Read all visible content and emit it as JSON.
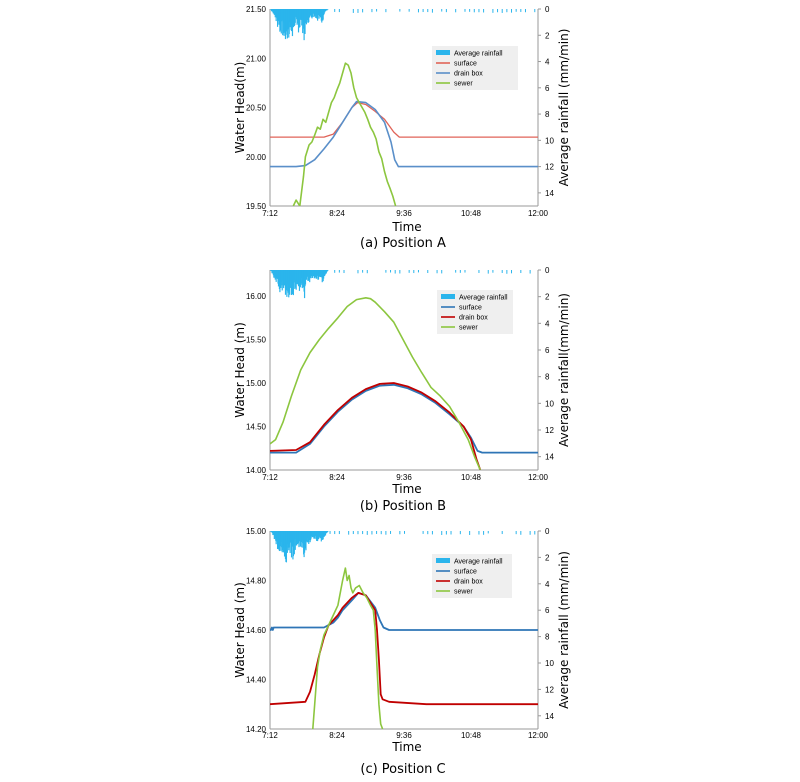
{
  "colors": {
    "rain": "#2bb5ec",
    "surface_a": "#e06358",
    "drain_a": "#5a8fc9",
    "sewer": "#8cc63f",
    "surface_bc": "#2e75b6",
    "drain_bc": "#c00000",
    "legend_bg": "#efefef"
  },
  "chart_data": [
    {
      "type": "line",
      "caption": "(a) Position A",
      "xlabel": "Time",
      "ylabel": "Water Head(m)",
      "y2label": "Average rainfall (mm/min)",
      "xticks": [
        "7:12",
        "8:24",
        "9:36",
        "10:48",
        "12:00"
      ],
      "yticks": [
        "19.50",
        "20.00",
        "20.50",
        "21.00",
        "21.50"
      ],
      "y2ticks": [
        "0",
        "2",
        "4",
        "6",
        "8",
        "10",
        "12",
        "14"
      ],
      "ylim": [
        19.5,
        21.5
      ],
      "y2lim": [
        0,
        15
      ],
      "xlim_minutes": [
        432,
        720
      ],
      "legend_position": "top-right",
      "legend": [
        "Average rainfall",
        "surface",
        "drain box",
        "sewer"
      ],
      "series": [
        {
          "name": "surface",
          "x": [
            "7:12",
            "7:40",
            "8:00",
            "8:10",
            "8:20",
            "8:30",
            "8:40",
            "8:46",
            "8:55",
            "9:05",
            "9:15",
            "9:25",
            "9:31",
            "10:00",
            "10:48",
            "12:00"
          ],
          "y": [
            20.2,
            20.2,
            20.2,
            20.2,
            20.23,
            20.35,
            20.5,
            20.55,
            20.53,
            20.46,
            20.38,
            20.25,
            20.2,
            20.2,
            20.2,
            20.2
          ]
        },
        {
          "name": "drain box",
          "x": [
            "7:12",
            "7:40",
            "7:50",
            "8:00",
            "8:10",
            "8:20",
            "8:30",
            "8:40",
            "8:45",
            "8:55",
            "9:05",
            "9:15",
            "9:22",
            "9:26",
            "9:30",
            "10:00",
            "10:48",
            "12:00"
          ],
          "y": [
            19.9,
            19.9,
            19.91,
            19.97,
            20.08,
            20.2,
            20.35,
            20.5,
            20.56,
            20.55,
            20.48,
            20.35,
            20.15,
            19.97,
            19.9,
            19.9,
            19.9,
            19.9
          ]
        },
        {
          "name": "sewer",
          "x": [
            "7:37",
            "7:40",
            "7:44",
            "7:48",
            "7:50",
            "7:54",
            "7:57",
            "8:00",
            "8:03",
            "8:06",
            "8:09",
            "8:12",
            "8:15",
            "8:18",
            "8:21",
            "8:24",
            "8:27",
            "8:30",
            "8:33",
            "8:36",
            "8:39",
            "8:42",
            "8:45",
            "8:48",
            "8:51",
            "8:54",
            "8:57",
            "9:00",
            "9:03",
            "9:06",
            "9:09",
            "9:12",
            "9:15",
            "9:18",
            "9:21",
            "9:24",
            "9:27"
          ],
          "y": [
            19.5,
            19.56,
            19.5,
            19.8,
            20.0,
            20.12,
            20.15,
            20.22,
            20.3,
            20.28,
            20.38,
            20.35,
            20.45,
            20.55,
            20.6,
            20.68,
            20.75,
            20.85,
            20.95,
            20.93,
            20.85,
            20.7,
            20.6,
            20.55,
            20.5,
            20.45,
            20.38,
            20.3,
            20.25,
            20.18,
            20.05,
            19.98,
            19.85,
            19.75,
            19.68,
            19.6,
            19.5
          ]
        }
      ],
      "rainfall_profile": [
        [
          0.0,
          0
        ],
        [
          3,
          0.4
        ],
        [
          6,
          1.0
        ],
        [
          9,
          1.4
        ],
        [
          12,
          1.6
        ],
        [
          15,
          1.8
        ],
        [
          18,
          2.4
        ],
        [
          21,
          1.6
        ],
        [
          24,
          1.9
        ],
        [
          27,
          1.3
        ],
        [
          30,
          1.5
        ],
        [
          33,
          1.1
        ],
        [
          36,
          2.0
        ],
        [
          39,
          1.0
        ],
        [
          42,
          0.8
        ],
        [
          46,
          0.5
        ],
        [
          50,
          0.9
        ],
        [
          53,
          0.6
        ],
        [
          56,
          1.1
        ],
        [
          58,
          0.4
        ],
        [
          60,
          0.2
        ],
        [
          62,
          0.0
        ]
      ]
    },
    {
      "type": "line",
      "caption": "(b) Position B",
      "xlabel": "Time",
      "ylabel": "Water Head (m)",
      "y2label": "Average rainfall(mm/min)",
      "xticks": [
        "7:12",
        "8:24",
        "9:36",
        "10:48",
        "12:00"
      ],
      "yticks": [
        "14.00",
        "14.50",
        "15.00",
        "15.50",
        "16.00"
      ],
      "y2ticks": [
        "0",
        "2",
        "4",
        "6",
        "8",
        "10",
        "12",
        "14"
      ],
      "ylim": [
        14.0,
        16.3
      ],
      "y2lim": [
        0,
        15
      ],
      "xlim_minutes": [
        432,
        720
      ],
      "legend_position": "top-right",
      "legend": [
        "Average rainfall",
        "surface",
        "drain box",
        "sewer"
      ],
      "series": [
        {
          "name": "surface",
          "x": [
            "7:12",
            "7:40",
            "7:55",
            "8:10",
            "8:25",
            "8:40",
            "8:55",
            "9:10",
            "9:25",
            "9:40",
            "9:55",
            "10:10",
            "10:25",
            "10:40",
            "10:48",
            "10:55",
            "11:00",
            "12:00"
          ],
          "y": [
            14.2,
            14.2,
            14.3,
            14.5,
            14.67,
            14.81,
            14.91,
            14.97,
            14.98,
            14.94,
            14.87,
            14.77,
            14.64,
            14.5,
            14.37,
            14.22,
            14.2,
            14.2
          ]
        },
        {
          "name": "drain box",
          "x": [
            "7:12",
            "7:40",
            "7:55",
            "8:10",
            "8:25",
            "8:40",
            "8:55",
            "9:10",
            "9:25",
            "9:40",
            "9:55",
            "10:10",
            "10:25",
            "10:40",
            "10:48",
            "10:54",
            "10:58"
          ],
          "y": [
            14.22,
            14.23,
            14.32,
            14.52,
            14.69,
            14.83,
            14.93,
            14.99,
            15.0,
            14.96,
            14.89,
            14.79,
            14.66,
            14.5,
            14.35,
            14.12,
            14.0
          ]
        },
        {
          "name": "sewer",
          "x": [
            "7:12",
            "7:18",
            "7:26",
            "7:35",
            "7:45",
            "7:55",
            "8:05",
            "8:15",
            "8:25",
            "8:35",
            "8:45",
            "8:55",
            "9:00",
            "9:05",
            "9:15",
            "9:25",
            "9:35",
            "9:45",
            "9:55",
            "10:05",
            "10:15",
            "10:25",
            "10:35",
            "10:45",
            "10:52",
            "10:58"
          ],
          "y": [
            14.3,
            14.35,
            14.55,
            14.85,
            15.15,
            15.35,
            15.5,
            15.63,
            15.75,
            15.88,
            15.96,
            15.98,
            15.97,
            15.93,
            15.82,
            15.7,
            15.5,
            15.3,
            15.12,
            14.95,
            14.85,
            14.73,
            14.55,
            14.35,
            14.15,
            14.0
          ]
        }
      ],
      "rainfall_profile": [
        [
          0.0,
          0
        ],
        [
          3,
          0.4
        ],
        [
          6,
          1.0
        ],
        [
          9,
          1.3
        ],
        [
          12,
          1.6
        ],
        [
          15,
          1.7
        ],
        [
          18,
          2.4
        ],
        [
          21,
          1.5
        ],
        [
          24,
          1.9
        ],
        [
          27,
          1.2
        ],
        [
          30,
          1.5
        ],
        [
          33,
          1.0
        ],
        [
          36,
          2.0
        ],
        [
          39,
          0.9
        ],
        [
          42,
          0.8
        ],
        [
          46,
          0.5
        ],
        [
          50,
          0.8
        ],
        [
          53,
          0.5
        ],
        [
          56,
          1.0
        ],
        [
          58,
          0.4
        ],
        [
          60,
          0.2
        ],
        [
          62,
          0.0
        ]
      ]
    },
    {
      "type": "line",
      "caption": "(c) Position C",
      "xlabel": "Time",
      "ylabel": "Water Head (m)",
      "y2label": "Average rainfall (mm/min)",
      "xticks": [
        "7:12",
        "8:24",
        "9:36",
        "10:48",
        "12:00"
      ],
      "yticks": [
        "14.20",
        "14.40",
        "14.60",
        "14.80",
        "15.00"
      ],
      "y2ticks": [
        "0",
        "2",
        "4",
        "6",
        "8",
        "10",
        "12",
        "14"
      ],
      "ylim": [
        14.2,
        15.0
      ],
      "y2lim": [
        0,
        15
      ],
      "xlim_minutes": [
        432,
        720
      ],
      "legend_position": "top-right",
      "legend": [
        "Average rainfall",
        "surface",
        "drain box",
        "sewer"
      ],
      "series": [
        {
          "name": "surface",
          "x": [
            "7:12",
            "7:13",
            "7:14",
            "7:15",
            "7:16",
            "7:17",
            "7:18",
            "7:40",
            "8:10",
            "8:15",
            "8:20",
            "8:25",
            "8:30",
            "8:40",
            "8:47",
            "8:55",
            "9:05",
            "9:10",
            "9:14",
            "9:20",
            "10:00",
            "10:48",
            "12:00"
          ],
          "y": [
            14.6,
            14.6,
            14.61,
            14.6,
            14.61,
            14.61,
            14.61,
            14.61,
            14.61,
            14.62,
            14.63,
            14.65,
            14.68,
            14.72,
            14.75,
            14.74,
            14.69,
            14.64,
            14.61,
            14.6,
            14.6,
            14.6,
            14.6
          ]
        },
        {
          "name": "drain box",
          "x": [
            "7:12",
            "7:50",
            "7:55",
            "8:00",
            "8:05",
            "8:10",
            "8:15",
            "8:20",
            "8:25",
            "8:30",
            "8:40",
            "8:47",
            "8:55",
            "9:05",
            "9:07",
            "9:09",
            "9:11",
            "9:13",
            "9:20",
            "10:00",
            "10:48",
            "12:00"
          ],
          "y": [
            14.3,
            14.31,
            14.35,
            14.42,
            14.5,
            14.57,
            14.62,
            14.64,
            14.66,
            14.69,
            14.73,
            14.75,
            14.74,
            14.68,
            14.6,
            14.48,
            14.34,
            14.32,
            14.31,
            14.3,
            14.3,
            14.3
          ]
        },
        {
          "name": "sewer",
          "x": [
            "7:58",
            "8:00",
            "8:03",
            "8:06",
            "8:10",
            "8:15",
            "8:20",
            "8:25",
            "8:30",
            "8:33",
            "8:35",
            "8:37",
            "8:39",
            "8:41",
            "8:44",
            "8:48",
            "8:52",
            "8:56",
            "9:00",
            "9:03",
            "9:05",
            "9:07",
            "9:09",
            "9:11",
            "9:13"
          ],
          "y": [
            14.2,
            14.3,
            14.45,
            14.52,
            14.58,
            14.62,
            14.66,
            14.7,
            14.8,
            14.85,
            14.8,
            14.82,
            14.77,
            14.75,
            14.77,
            14.78,
            14.75,
            14.73,
            14.7,
            14.68,
            14.6,
            14.45,
            14.3,
            14.22,
            14.2
          ]
        }
      ],
      "rainfall_profile": [
        [
          0.0,
          0
        ],
        [
          3,
          0.4
        ],
        [
          6,
          1.0
        ],
        [
          9,
          1.3
        ],
        [
          12,
          1.6
        ],
        [
          15,
          1.7
        ],
        [
          18,
          2.4
        ],
        [
          21,
          1.5
        ],
        [
          24,
          1.9
        ],
        [
          27,
          1.2
        ],
        [
          30,
          1.5
        ],
        [
          33,
          1.0
        ],
        [
          36,
          2.0
        ],
        [
          39,
          0.9
        ],
        [
          42,
          0.8
        ],
        [
          46,
          0.5
        ],
        [
          50,
          0.8
        ],
        [
          53,
          0.5
        ],
        [
          56,
          1.0
        ],
        [
          58,
          0.4
        ],
        [
          60,
          0.2
        ],
        [
          62,
          0.0
        ]
      ]
    }
  ]
}
